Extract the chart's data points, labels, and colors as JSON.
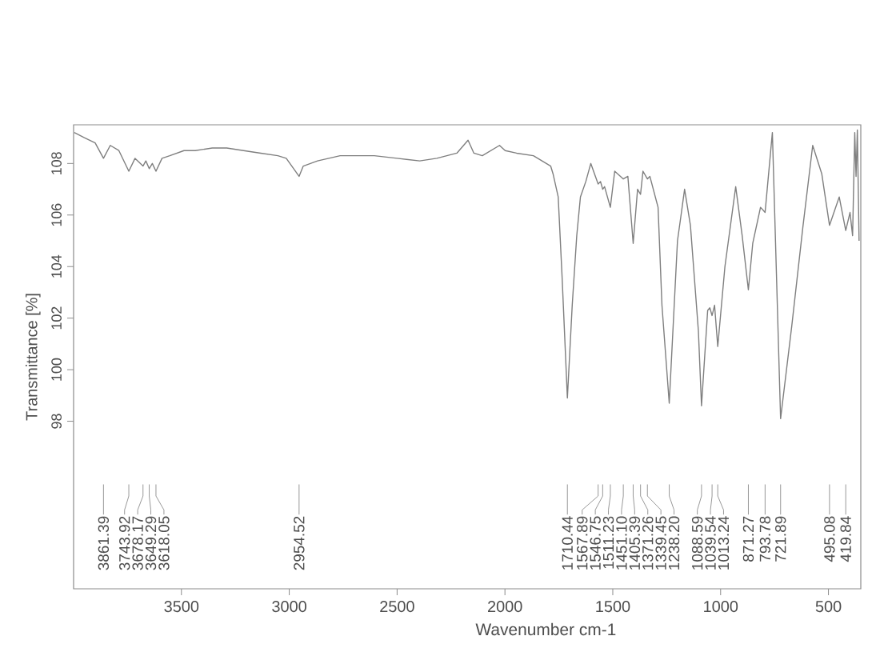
{
  "chart_data": {
    "type": "line",
    "xlabel": "Wavenumber cm-1",
    "ylabel": "Transmittance [%]",
    "color": "#7f7f7f",
    "x": [
      3997,
      3950,
      3900,
      3861.39,
      3830,
      3790,
      3743.92,
      3715,
      3678.17,
      3665,
      3649.29,
      3635,
      3618.05,
      3590,
      3554,
      3488,
      3436,
      3357,
      3290,
      3212,
      3132,
      3053,
      3014,
      2954.52,
      2935,
      2869,
      2764,
      2606,
      2500,
      2395,
      2316,
      2223,
      2171,
      2144,
      2105,
      2025,
      1999,
      1946,
      1868,
      1788,
      1777,
      1753,
      1735,
      1710.44,
      1688,
      1667,
      1650,
      1625,
      1602,
      1567.89,
      1557,
      1546.75,
      1538,
      1511.23,
      1491,
      1451.1,
      1430,
      1405.39,
      1385,
      1371.26,
      1360,
      1339.45,
      1328,
      1290,
      1272,
      1238.2,
      1200,
      1185,
      1167,
      1140,
      1103,
      1088.59,
      1060,
      1050,
      1039.54,
      1028,
      1013.24,
      980,
      930,
      900,
      871.27,
      851,
      815,
      793.78,
      760,
      721.89,
      670,
      619,
      573,
      531,
      495.08,
      450,
      419.84,
      400,
      388,
      378,
      372,
      366,
      358
    ],
    "values": [
      109.2,
      109.0,
      108.8,
      108.2,
      108.7,
      108.5,
      107.7,
      108.2,
      107.9,
      108.1,
      107.8,
      108.0,
      107.7,
      108.2,
      108.3,
      108.5,
      108.5,
      108.6,
      108.6,
      108.5,
      108.4,
      108.3,
      108.2,
      107.5,
      107.9,
      108.1,
      108.3,
      108.3,
      108.2,
      108.1,
      108.2,
      108.4,
      108.9,
      108.4,
      108.3,
      108.7,
      108.5,
      108.4,
      108.3,
      107.9,
      107.6,
      106.7,
      103.6,
      98.9,
      102.5,
      105.2,
      106.7,
      107.3,
      108.0,
      107.2,
      107.3,
      107.0,
      107.1,
      106.3,
      107.7,
      107.4,
      107.5,
      104.9,
      107.0,
      106.8,
      107.7,
      107.4,
      107.5,
      106.3,
      102.5,
      98.7,
      105.0,
      105.9,
      107.0,
      105.6,
      101.5,
      98.6,
      102.3,
      102.4,
      102.1,
      102.5,
      100.9,
      104.0,
      107.1,
      105.2,
      103.1,
      104.9,
      106.3,
      106.1,
      109.2,
      98.1,
      101.7,
      105.5,
      108.7,
      107.6,
      105.6,
      106.7,
      105.4,
      106.1,
      105.2,
      109.2,
      107.5,
      109.3,
      105.0
    ],
    "xlim": [
      4000,
      350
    ],
    "ylim": [
      91.5,
      109.5
    ],
    "xticks": [
      3500,
      3000,
      2500,
      2000,
      1500,
      1000,
      500
    ],
    "yticks": [
      98,
      100,
      102,
      104,
      106,
      108
    ],
    "annotations": [
      {
        "text": "3861.39",
        "x": 3861.39
      },
      {
        "text": "3743.92",
        "x": 3743.92
      },
      {
        "text": "3678.17",
        "x": 3678.17
      },
      {
        "text": "3649.29",
        "x": 3649.29
      },
      {
        "text": "3618.05",
        "x": 3618.05
      },
      {
        "text": "2954.52",
        "x": 2954.52
      },
      {
        "text": "1710.44",
        "x": 1710.44
      },
      {
        "text": "1567.89",
        "x": 1567.89
      },
      {
        "text": "1546.75",
        "x": 1546.75
      },
      {
        "text": "1511.23",
        "x": 1511.23
      },
      {
        "text": "1451.10",
        "x": 1451.1
      },
      {
        "text": "1405.39",
        "x": 1405.39
      },
      {
        "text": "1371.26",
        "x": 1371.26
      },
      {
        "text": "1339.45",
        "x": 1339.45
      },
      {
        "text": "1238.20",
        "x": 1238.2
      },
      {
        "text": "1088.59",
        "x": 1088.59
      },
      {
        "text": "1039.54",
        "x": 1039.54
      },
      {
        "text": "1013.24",
        "x": 1013.24
      },
      {
        "text": "871.27",
        "x": 871.27
      },
      {
        "text": "793.78",
        "x": 793.78
      },
      {
        "text": "721.89",
        "x": 721.89
      },
      {
        "text": "495.08",
        "x": 495.08
      },
      {
        "text": "419.84",
        "x": 419.84
      }
    ]
  }
}
